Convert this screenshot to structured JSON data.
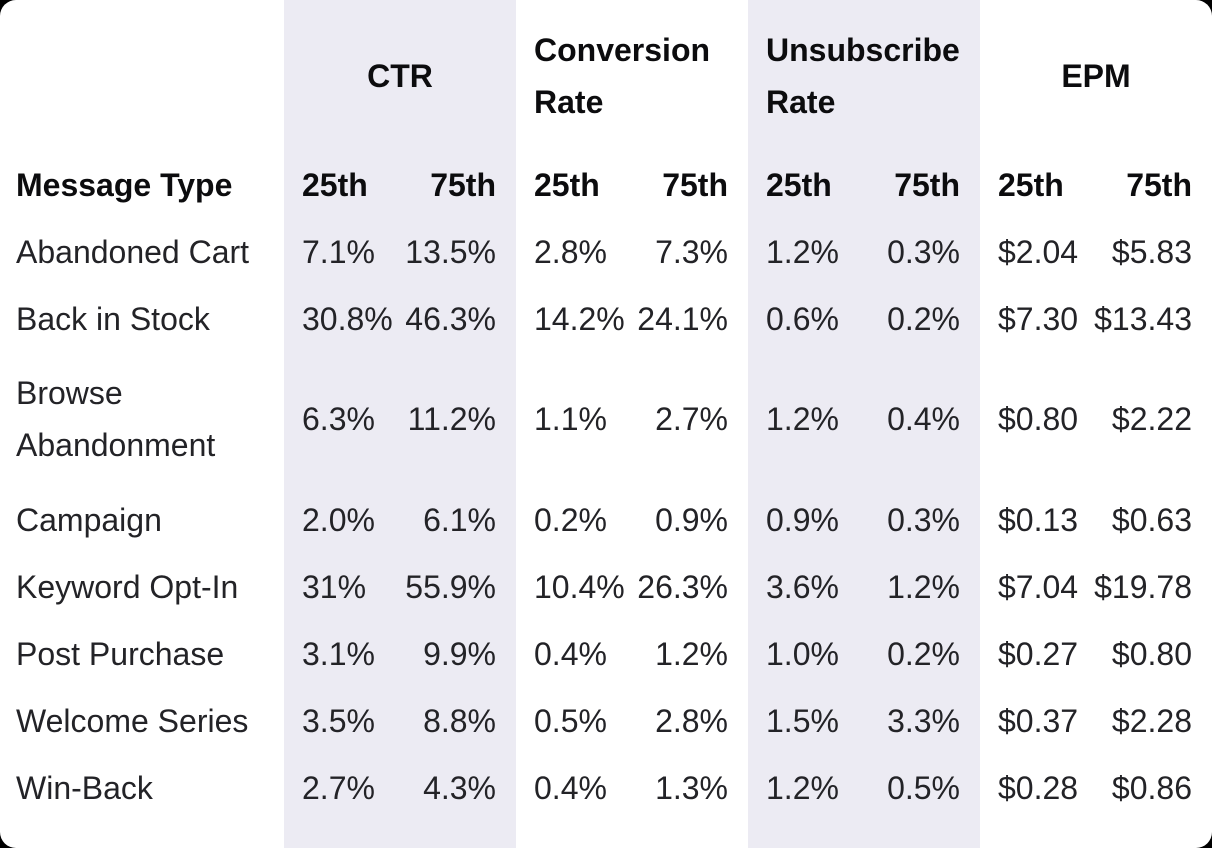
{
  "colors": {
    "page_background": "#000000",
    "card_background": "#ffffff",
    "band_background": "#ECEBF3",
    "header_text": "#0c0c0e",
    "body_text": "#232327"
  },
  "chart_data": {
    "type": "table",
    "title": "",
    "row_header": "Message Type",
    "column_groups": [
      {
        "label": "CTR",
        "banded": true
      },
      {
        "label": "Conversion Rate",
        "banded": false
      },
      {
        "label": "Unsubscribe Rate",
        "banded": true
      },
      {
        "label": "EPM",
        "banded": false
      }
    ],
    "sub_headers": [
      "25th",
      "75th"
    ],
    "rows": [
      {
        "label": "Abandoned Cart",
        "values": [
          "7.1%",
          "13.5%",
          "2.8%",
          "7.3%",
          "1.2%",
          "0.3%",
          "$2.04",
          "$5.83"
        ]
      },
      {
        "label": "Back in Stock",
        "values": [
          "30.8%",
          "46.3%",
          "14.2%",
          "24.1%",
          "0.6%",
          "0.2%",
          "$7.30",
          "$13.43"
        ]
      },
      {
        "label": "Browse Abandonment",
        "values": [
          "6.3%",
          "11.2%",
          "1.1%",
          "2.7%",
          "1.2%",
          "0.4%",
          "$0.80",
          "$2.22"
        ]
      },
      {
        "label": "Campaign",
        "values": [
          "2.0%",
          "6.1%",
          "0.2%",
          "0.9%",
          "0.9%",
          "0.3%",
          "$0.13",
          "$0.63"
        ]
      },
      {
        "label": "Keyword Opt-In",
        "values": [
          "31%",
          "55.9%",
          "10.4%",
          "26.3%",
          "3.6%",
          "1.2%",
          "$7.04",
          "$19.78"
        ]
      },
      {
        "label": "Post Purchase",
        "values": [
          "3.1%",
          "9.9%",
          "0.4%",
          "1.2%",
          "1.0%",
          "0.2%",
          "$0.27",
          "$0.80"
        ]
      },
      {
        "label": "Welcome Series",
        "values": [
          "3.5%",
          "8.8%",
          "0.5%",
          "2.8%",
          "1.5%",
          "3.3%",
          "$0.37",
          "$2.28"
        ]
      },
      {
        "label": "Win-Back",
        "values": [
          "2.7%",
          "4.3%",
          "0.4%",
          "1.3%",
          "1.2%",
          "0.5%",
          "$0.28",
          "$0.86"
        ]
      }
    ]
  }
}
